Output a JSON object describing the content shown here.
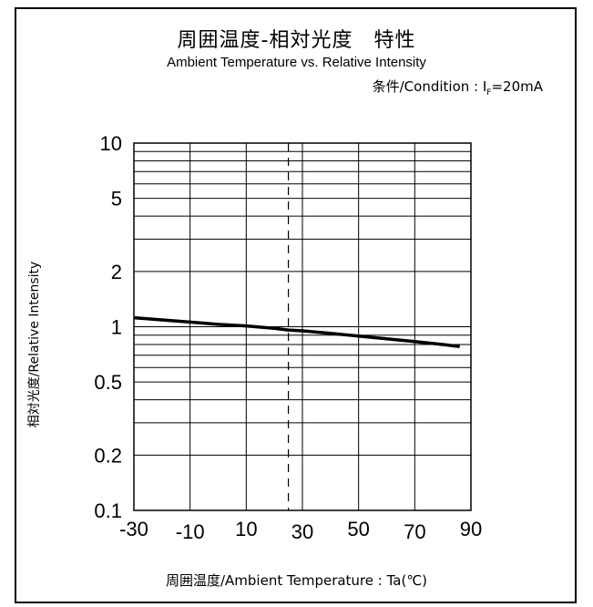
{
  "chart_data": {
    "type": "line",
    "title": "周囲温度-相対光度　特性",
    "subtitle": "Ambient Temperature vs. Relative Intensity",
    "condition": {
      "prefix": "条件/Condition : I",
      "subscript": "F",
      "suffix": "=20mA"
    },
    "xlabel": "周囲温度/Ambient Temperature : Ta(℃)",
    "ylabel": "相対光度/Relative Intensity",
    "x_ticks": [
      -30,
      -10,
      10,
      30,
      50,
      70,
      90
    ],
    "y_ticks": [
      10,
      5,
      2,
      1,
      0.5,
      0.2,
      0.1
    ],
    "y_tick_labels": [
      "10",
      "5",
      "2",
      "1",
      "0.5",
      "0.2",
      "0.1"
    ],
    "xlim": [
      -30,
      90
    ],
    "ylim": [
      0.1,
      10
    ],
    "y_scale": "log",
    "grid": true,
    "reference_line_x": 25,
    "series": [
      {
        "x": [
          -30,
          -20,
          -10,
          0,
          10,
          20,
          25,
          30,
          40,
          50,
          60,
          70,
          80,
          86
        ],
        "y": [
          1.12,
          1.09,
          1.06,
          1.03,
          1.01,
          0.98,
          0.96,
          0.95,
          0.92,
          0.89,
          0.86,
          0.83,
          0.8,
          0.78
        ],
        "color": "#000000"
      }
    ]
  }
}
